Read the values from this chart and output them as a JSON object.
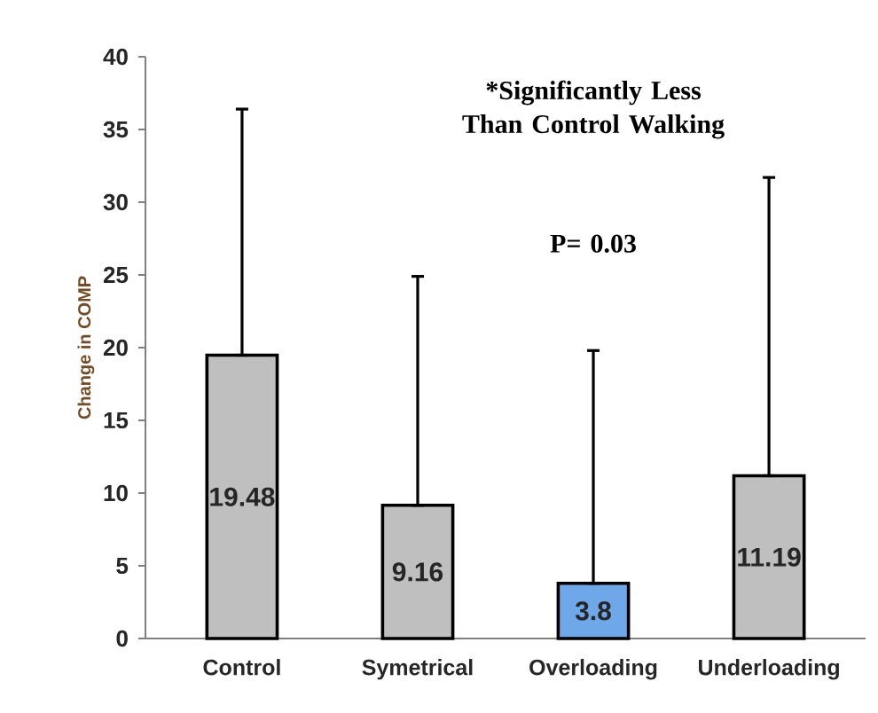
{
  "chart_data": {
    "type": "bar",
    "ylabel": "Change in COMP",
    "categories": [
      "Control",
      "Symetrical",
      "Overloading",
      "Underloading"
    ],
    "values": [
      19.48,
      9.16,
      3.8,
      11.19
    ],
    "colors": [
      "#bfbfbf",
      "#bfbfbf",
      "#6fa8e8",
      "#bfbfbf"
    ],
    "errors": [
      [
        19.48,
        36.4
      ],
      [
        9.16,
        24.9
      ],
      [
        3.8,
        19.8
      ],
      [
        11.19,
        31.7
      ]
    ],
    "ylim": [
      0,
      40
    ],
    "yticks": [
      0,
      5,
      10,
      15,
      20,
      25,
      30,
      35,
      40
    ],
    "data_labels": true,
    "annotations": [
      "*Significantly Less Than Control Walking",
      "P= 0.03"
    ]
  }
}
